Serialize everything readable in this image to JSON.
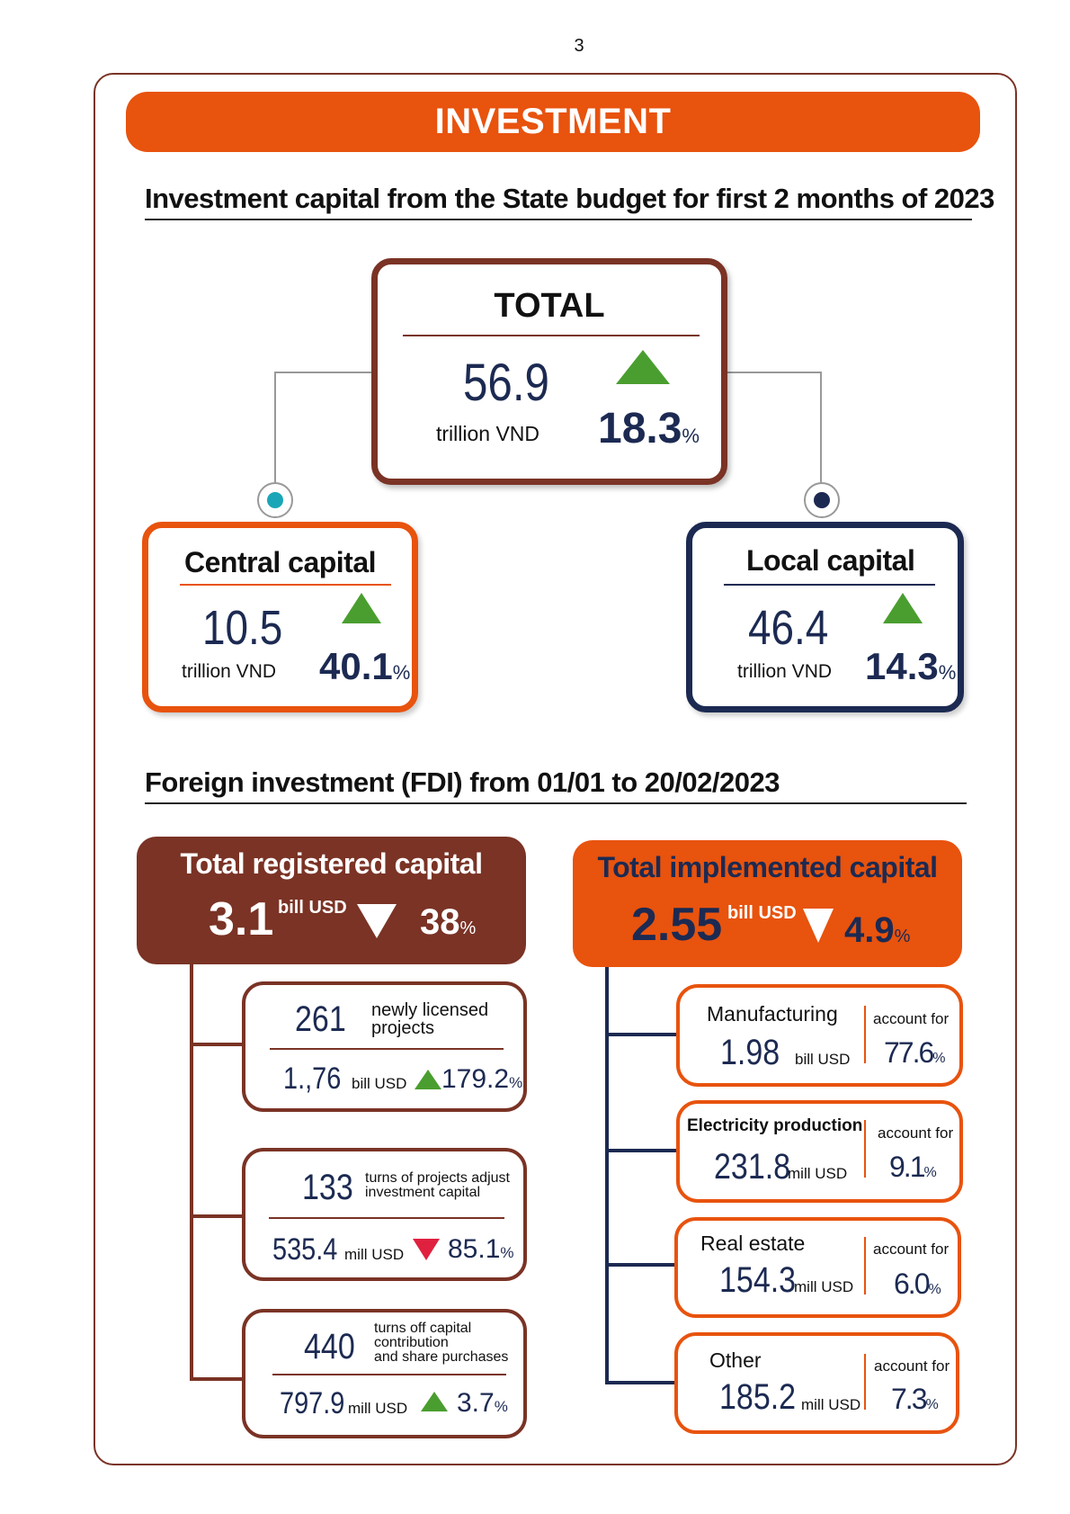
{
  "page_number": "3",
  "banner": "INVESTMENT",
  "state_budget": {
    "title": "Investment capital from the State budget for first 2 months of 2023",
    "total": {
      "label": "TOTAL",
      "value": "56.9",
      "unit": "trillion VND",
      "change": "18.3",
      "pct": "%",
      "direction": "up"
    },
    "central": {
      "label": "Central capital",
      "value": "10.5",
      "unit": "trillion VND",
      "change": "40.1",
      "pct": "%",
      "direction": "up"
    },
    "local": {
      "label": "Local capital",
      "value": "46.4",
      "unit": "trillion VND",
      "change": "14.3",
      "pct": "%",
      "direction": "up"
    }
  },
  "fdi": {
    "title": "Foreign investment (FDI) from 01/01 to 20/02/2023",
    "registered": {
      "label": "Total registered capital",
      "value": "3.1",
      "unit": "bill USD",
      "change": "38",
      "pct": "%",
      "direction": "down",
      "items": [
        {
          "count": "261",
          "desc1": "newly licensed",
          "desc2": "projects",
          "desc3": "",
          "value": "1.,76",
          "unit": "bill USD",
          "change": "179.2",
          "pct": "%",
          "direction": "up"
        },
        {
          "count": "133",
          "desc1": "turns of projects adjust",
          "desc2": "investment capital",
          "desc3": "",
          "value": "535.4",
          "unit": "mill USD",
          "change": "85.1",
          "pct": "%",
          "direction": "down"
        },
        {
          "count": "440",
          "desc1": "turns off capital",
          "desc2": "contribution",
          "desc3": "and share purchases",
          "value": "797.9",
          "unit": "mill USD",
          "change": "3.7",
          "pct": "%",
          "direction": "up"
        }
      ]
    },
    "implemented": {
      "label": "Total implemented capital",
      "value": "2.55",
      "unit": "bill USD",
      "change": "4.9",
      "pct": "%",
      "direction": "down",
      "items": [
        {
          "sector": "Manufacturing",
          "value": "1.98",
          "unit": "bill USD",
          "share_label": "account for",
          "share": "77.6",
          "pct": "%"
        },
        {
          "sector": "Electricity production",
          "value": "231.8",
          "unit": "mill USD",
          "share_label": "account for",
          "share": "9.1",
          "pct": "%"
        },
        {
          "sector": "Real estate",
          "value": "154.3",
          "unit": "mill USD",
          "share_label": "account for",
          "share": "6.0",
          "pct": "%"
        },
        {
          "sector": "Other",
          "value": "185.2",
          "unit": "mill USD",
          "share_label": "account for",
          "share": "7.3",
          "pct": "%"
        }
      ]
    }
  },
  "colors": {
    "orange": "#e8530e",
    "brown": "#7a3325",
    "navy": "#1c2a52",
    "up_green": "#4a9e2f",
    "down_red": "#e0203f",
    "teal": "#1aa6b7"
  }
}
